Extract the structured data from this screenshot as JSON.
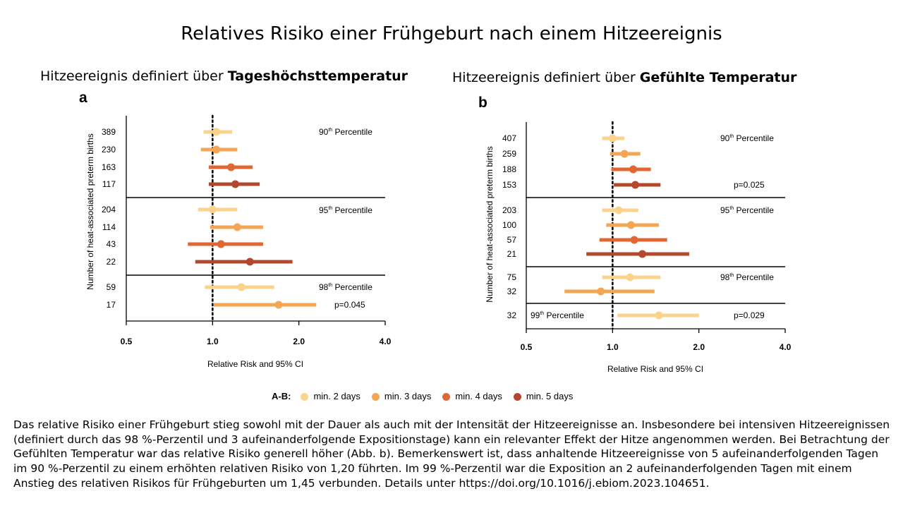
{
  "title": "Relatives Risiko einer Frühgeburt nach einem Hitzeereignis",
  "panel_a": {
    "subtitle_prefix": "Hitzeereignis definiert über ",
    "subtitle_bold": "Tageshöchsttemperatur",
    "letter": "a"
  },
  "panel_b": {
    "subtitle_prefix": "Hitzeereignis definiert über ",
    "subtitle_bold": "Gefühlte Temperatur",
    "letter": "b"
  },
  "legend": {
    "prefix": "A-B:",
    "items": [
      {
        "label": "min. 2 days",
        "color": "#fbd38c"
      },
      {
        "label": "min. 3 days",
        "color": "#f4a652"
      },
      {
        "label": "min. 4 days",
        "color": "#e06632"
      },
      {
        "label": "min. 5 days",
        "color": "#b2492e"
      }
    ]
  },
  "caption": "Das relative Risiko einer Frühgeburt stieg sowohl mit der Dauer als auch mit der Intensität der Hitzeereignisse an. Insbesondere bei intensiven Hitzeereignissen (definiert durch das 98 %-Perzentil und 3 aufeinanderfolgende Expositionstage) kann ein relevanter Effekt der Hitze angenommen werden. Bei Betrachtung der Gefühlten Temperatur war das relative Risiko generell höher (Abb. b). Bemerkenswert ist, dass anhaltende Hitzeereignisse von 5 aufeinanderfolgenden Tagen im 90 %-Perzentil zu einem erhöhten relativen Risiko von 1,20 führten. Im 99 %-Perzentil war die Exposition an 2 aufeinanderfolgenden Tagen mit einem Anstieg des relativen Risikos für Frühgeburten um 1,45 verbunden. Details unter https://doi.org/10.1016/j.ebiom.2023.104651.",
  "chart_data": [
    {
      "type": "forest",
      "panel": "a",
      "xlabel": "Relative Risk and 95% CI",
      "ylabel": "Number of heat-associated preterm births",
      "x_scale": "log",
      "xlim": [
        0.5,
        4.0
      ],
      "x_ticks": [
        {
          "value": 0.5,
          "label": "0.5"
        },
        {
          "value": 1.0,
          "label": "1.0"
        },
        {
          "value": 2.0,
          "label": "2.0"
        },
        {
          "value": 4.0,
          "label": "4.0"
        }
      ],
      "reference_line": 1.0,
      "colors": {
        "min. 2 days": "#fbd38c",
        "min. 3 days": "#f4a652",
        "min. 4 days": "#e06632",
        "min. 5 days": "#b2492e"
      },
      "groups": [
        {
          "label_base": "90",
          "label_sup": "th",
          "label_rest": " Percentile",
          "p_value": "",
          "rows": [
            {
              "n": "389",
              "duration": "min. 2 days",
              "rr": 1.03,
              "lo": 0.93,
              "hi": 1.17
            },
            {
              "n": "230",
              "duration": "min. 3 days",
              "rr": 1.03,
              "lo": 0.91,
              "hi": 1.22
            },
            {
              "n": "163",
              "duration": "min. 4 days",
              "rr": 1.16,
              "lo": 0.97,
              "hi": 1.38
            },
            {
              "n": "117",
              "duration": "min. 5 days",
              "rr": 1.2,
              "lo": 0.97,
              "hi": 1.46
            }
          ]
        },
        {
          "label_base": "95",
          "label_sup": "th",
          "label_rest": " Percentile",
          "p_value": "",
          "rows": [
            {
              "n": "204",
              "duration": "min. 2 days",
              "rr": 1.0,
              "lo": 0.89,
              "hi": 1.22
            },
            {
              "n": "114",
              "duration": "min. 3 days",
              "rr": 1.22,
              "lo": 0.98,
              "hi": 1.5
            },
            {
              "n": "43",
              "duration": "min. 4 days",
              "rr": 1.07,
              "lo": 0.82,
              "hi": 1.5
            },
            {
              "n": "22",
              "duration": "min. 5 days",
              "rr": 1.35,
              "lo": 0.87,
              "hi": 1.9
            }
          ]
        },
        {
          "label_base": "98",
          "label_sup": "th",
          "label_rest": " Percentile",
          "p_value": "p=0.045",
          "rows": [
            {
              "n": "59",
              "duration": "min. 2 days",
              "rr": 1.26,
              "lo": 0.94,
              "hi": 1.64
            },
            {
              "n": "17",
              "duration": "min. 3 days",
              "rr": 1.7,
              "lo": 1.01,
              "hi": 2.3
            }
          ]
        }
      ]
    },
    {
      "type": "forest",
      "panel": "b",
      "xlabel": "Relative Risk and 95% CI",
      "ylabel": "Number of heat-associated preterm births",
      "x_scale": "log",
      "xlim": [
        0.5,
        4.0
      ],
      "x_ticks": [
        {
          "value": 0.5,
          "label": "0.5"
        },
        {
          "value": 1.0,
          "label": "1.0"
        },
        {
          "value": 2.0,
          "label": "2.0"
        },
        {
          "value": 4.0,
          "label": "4.0"
        }
      ],
      "reference_line": 1.0,
      "colors": {
        "min. 2 days": "#fbd38c",
        "min. 3 days": "#f4a652",
        "min. 4 days": "#e06632",
        "min. 5 days": "#b2492e"
      },
      "groups": [
        {
          "label_base": "90",
          "label_sup": "th",
          "label_rest": " Percentile",
          "p_value": "p=0.025",
          "rows": [
            {
              "n": "407",
              "duration": "min. 2 days",
              "rr": 1.0,
              "lo": 0.92,
              "hi": 1.1
            },
            {
              "n": "259",
              "duration": "min. 3 days",
              "rr": 1.1,
              "lo": 0.98,
              "hi": 1.25
            },
            {
              "n": "188",
              "duration": "min. 4 days",
              "rr": 1.18,
              "lo": 0.99,
              "hi": 1.36
            },
            {
              "n": "153",
              "duration": "min. 5 days",
              "rr": 1.2,
              "lo": 1.01,
              "hi": 1.47
            }
          ]
        },
        {
          "label_base": "95",
          "label_sup": "th",
          "label_rest": " Percentile",
          "p_value": "",
          "rows": [
            {
              "n": "203",
              "duration": "min. 2 days",
              "rr": 1.05,
              "lo": 0.92,
              "hi": 1.23
            },
            {
              "n": "100",
              "duration": "min. 3 days",
              "rr": 1.16,
              "lo": 0.95,
              "hi": 1.45
            },
            {
              "n": "57",
              "duration": "min. 4 days",
              "rr": 1.19,
              "lo": 0.9,
              "hi": 1.55
            },
            {
              "n": "21",
              "duration": "min. 5 days",
              "rr": 1.27,
              "lo": 0.81,
              "hi": 1.85
            }
          ]
        },
        {
          "label_base": "98",
          "label_sup": "th",
          "label_rest": " Percentile",
          "p_value": "",
          "rows": [
            {
              "n": "75",
              "duration": "min. 2 days",
              "rr": 1.15,
              "lo": 0.92,
              "hi": 1.47
            },
            {
              "n": "32",
              "duration": "min. 3 days",
              "rr": 0.91,
              "lo": 0.68,
              "hi": 1.4
            }
          ]
        },
        {
          "label_base": "99",
          "label_sup": "th",
          "label_rest": " Percentile",
          "p_value": "p=0.029",
          "rows": [
            {
              "n": "32",
              "duration": "min. 2 days",
              "rr": 1.45,
              "lo": 1.04,
              "hi": 2.0
            }
          ]
        }
      ]
    }
  ]
}
